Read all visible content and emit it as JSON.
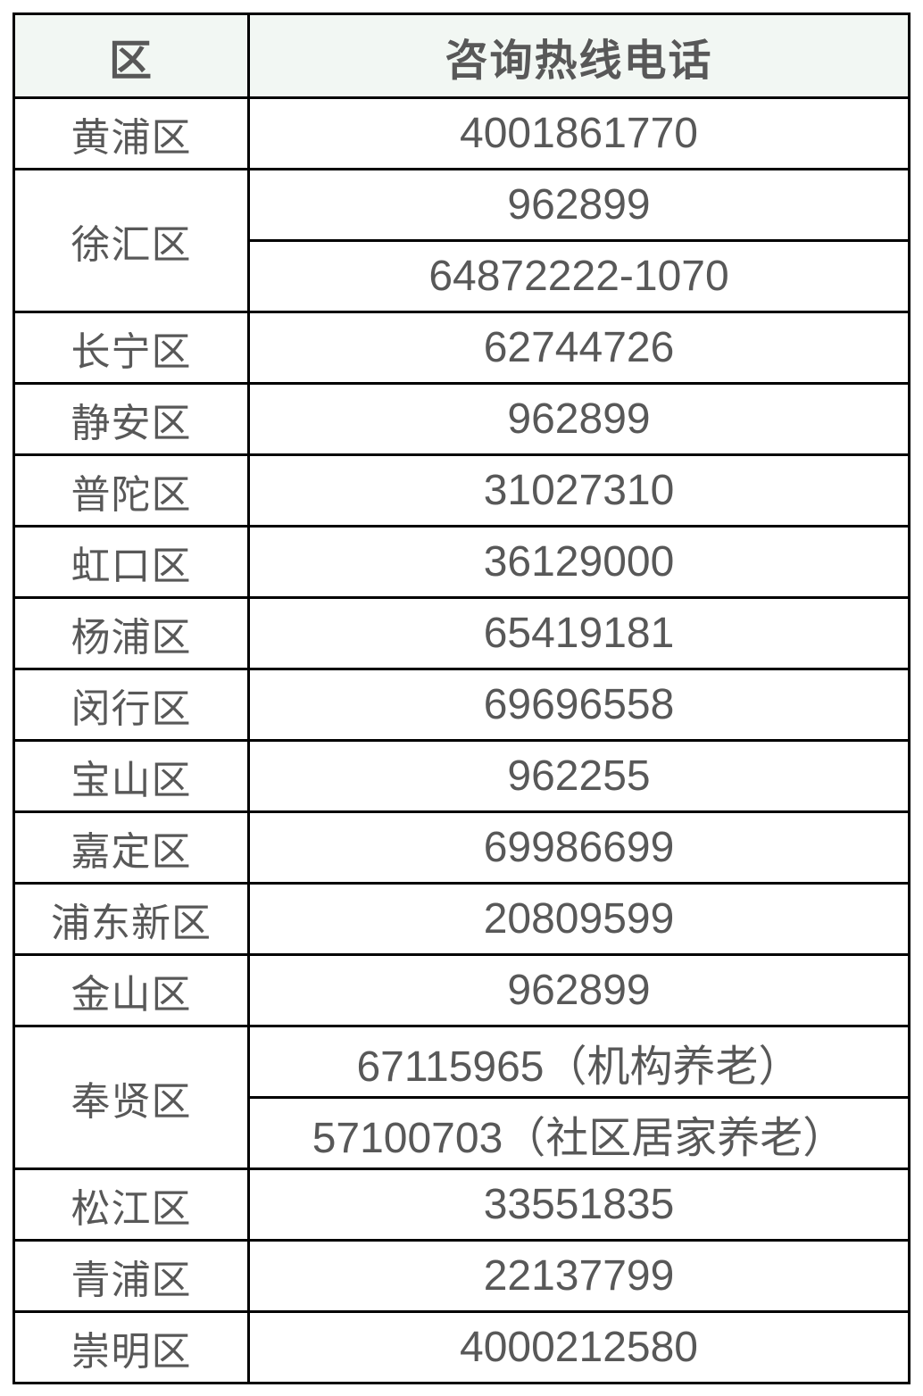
{
  "table": {
    "headers": [
      "区",
      "咨询热线电话"
    ],
    "rows": [
      {
        "district": "黄浦区",
        "phones": [
          "4001861770"
        ]
      },
      {
        "district": "徐汇区",
        "phones": [
          "962899",
          "64872222-1070"
        ]
      },
      {
        "district": "长宁区",
        "phones": [
          "62744726"
        ]
      },
      {
        "district": "静安区",
        "phones": [
          "962899"
        ]
      },
      {
        "district": "普陀区",
        "phones": [
          "31027310"
        ]
      },
      {
        "district": "虹口区",
        "phones": [
          "36129000"
        ]
      },
      {
        "district": "杨浦区",
        "phones": [
          "65419181"
        ]
      },
      {
        "district": "闵行区",
        "phones": [
          "69696558"
        ]
      },
      {
        "district": "宝山区",
        "phones": [
          "962255"
        ]
      },
      {
        "district": "嘉定区",
        "phones": [
          "69986699"
        ]
      },
      {
        "district": "浦东新区",
        "phones": [
          "20809599"
        ]
      },
      {
        "district": "金山区",
        "phones": [
          "962899"
        ]
      },
      {
        "district": "奉贤区",
        "phones": [
          "67115965（机构养老）",
          "57100703（社区居家养老）"
        ]
      },
      {
        "district": "松江区",
        "phones": [
          "33551835"
        ]
      },
      {
        "district": "青浦区",
        "phones": [
          "22137799"
        ]
      },
      {
        "district": "崇明区",
        "phones": [
          "4000212580"
        ]
      }
    ],
    "colors": {
      "header_bg": "#f2f7f3",
      "text": "#585858",
      "border": "#000000",
      "body_bg": "#ffffff"
    }
  }
}
